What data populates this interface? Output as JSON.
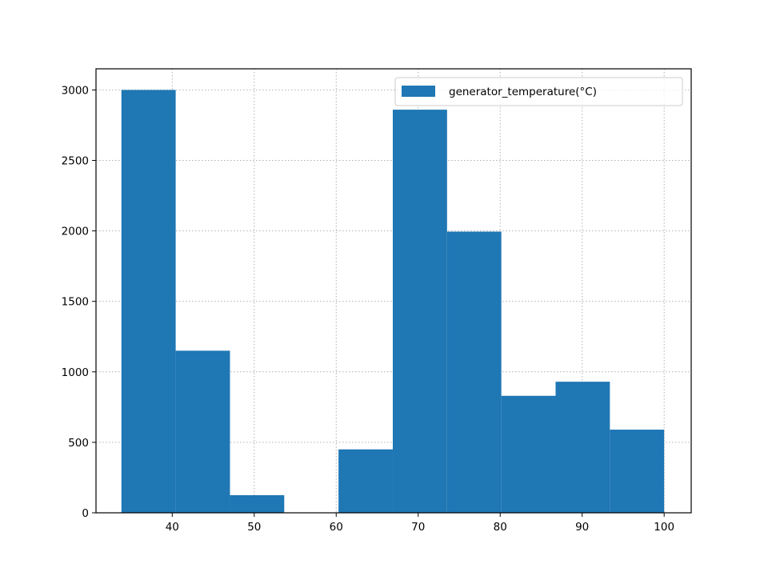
{
  "chart_data": {
    "type": "bar",
    "subtype": "histogram",
    "title": "",
    "xlabel": "",
    "ylabel": "",
    "legend": {
      "position": "top-right",
      "entries": [
        "generator_temperature(°C)"
      ]
    },
    "grid": true,
    "xlim": [
      30.7,
      103.3
    ],
    "ylim": [
      0,
      3150
    ],
    "xticks": [
      40,
      50,
      60,
      70,
      80,
      90,
      100
    ],
    "yticks": [
      0,
      500,
      1000,
      1500,
      2000,
      2500,
      3000
    ],
    "bin_edges": [
      33.8,
      40.42,
      47.04,
      53.66,
      60.28,
      66.9,
      73.52,
      80.14,
      86.76,
      93.38,
      100.0
    ],
    "series": [
      {
        "name": "generator_temperature(°C)",
        "color": "#1f77b4",
        "values": [
          3000,
          1150,
          125,
          0,
          450,
          2860,
          1995,
          830,
          930,
          590
        ]
      }
    ]
  }
}
